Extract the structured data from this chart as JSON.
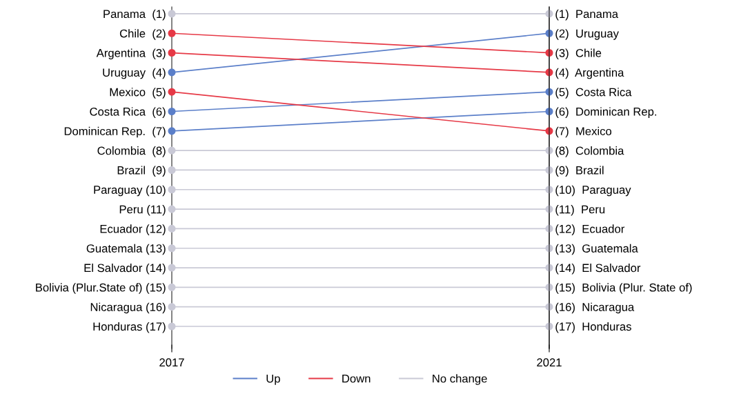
{
  "chart_data": {
    "type": "line",
    "x": [
      2017,
      2021
    ],
    "xlim": [
      2017,
      2021
    ],
    "xticks": [
      2017,
      2021
    ],
    "ylim": [
      18.13,
      0.65
    ],
    "yticks": [
      {
        "value": 1,
        "label": "Panama  (1)"
      },
      {
        "value": 2,
        "label": "Chile  (2)"
      },
      {
        "value": 3,
        "label": "Argentina  (3)"
      },
      {
        "value": 4,
        "label": "Uruguay  (4)"
      },
      {
        "value": 5,
        "label": "Mexico  (5)"
      },
      {
        "value": 6,
        "label": "Costa Rica  (6)"
      },
      {
        "value": 7,
        "label": "Dominican Rep.  (7)"
      },
      {
        "value": 8,
        "label": "Colombia  (8)"
      },
      {
        "value": 9,
        "label": "Brazil  (9)"
      },
      {
        "value": 10,
        "label": "Paraguay (10)"
      },
      {
        "value": 11,
        "label": "Peru (11)"
      },
      {
        "value": 12,
        "label": "Ecuador (12)"
      },
      {
        "value": 13,
        "label": "Guatemala (13)"
      },
      {
        "value": 14,
        "label": "El Salvador (14)"
      },
      {
        "value": 15,
        "label": "Bolivia (Plur.State of) (15)"
      },
      {
        "value": 16,
        "label": "Nicaragua (16)"
      },
      {
        "value": 17,
        "label": "Honduras (17)"
      }
    ],
    "y2lim": [
      18.13,
      0.65
    ],
    "y2ticks": [
      {
        "value": 1,
        "label": "(1)  Panama"
      },
      {
        "value": 2,
        "label": "(2)  Uruguay"
      },
      {
        "value": 3,
        "label": "(3)  Chile"
      },
      {
        "value": 4,
        "label": "(4)  Argentina"
      },
      {
        "value": 5,
        "label": "(5)  Costa Rica"
      },
      {
        "value": 6,
        "label": "(6)  Dominican Rep."
      },
      {
        "value": 7,
        "label": "(7)  Mexico"
      },
      {
        "value": 8,
        "label": "(8)  Colombia"
      },
      {
        "value": 9,
        "label": "(9)  Brazil"
      },
      {
        "value": 10,
        "label": "(10)  Paraguay"
      },
      {
        "value": 11,
        "label": "(11)  Peru"
      },
      {
        "value": 12,
        "label": "(12)  Ecuador"
      },
      {
        "value": 13,
        "label": "(13)  Guatemala"
      },
      {
        "value": 14,
        "label": "(14)  El Salvador"
      },
      {
        "value": 15,
        "label": "(15)  Bolivia (Plur. State of)"
      },
      {
        "value": 16,
        "label": "(16)  Nicaragua"
      },
      {
        "value": 17,
        "label": "(17)  Honduras"
      }
    ],
    "marker": "circle",
    "line_style": "solid",
    "grid": false,
    "legend": "bottom",
    "series": [
      {
        "name": "Up",
        "color": "#5b7fc9",
        "values": [
          4,
          2
        ]
      },
      {
        "color": "#5b7fc9",
        "values": [
          6,
          5
        ]
      },
      {
        "color": "#5b7fc9",
        "values": [
          7,
          6
        ]
      },
      {
        "name": "Down",
        "color": "#e63946",
        "values": [
          2,
          3
        ]
      },
      {
        "color": "#e63946",
        "values": [
          3,
          4
        ]
      },
      {
        "color": "#e63946",
        "values": [
          5,
          7
        ]
      },
      {
        "name": "No change",
        "color": "#c9c9d6",
        "values": [
          1,
          1
        ]
      },
      {
        "color": "#c9c9d6",
        "values": [
          8,
          8
        ]
      },
      {
        "color": "#c9c9d6",
        "values": [
          9,
          9
        ]
      },
      {
        "color": "#c9c9d6",
        "values": [
          10,
          10
        ]
      },
      {
        "color": "#c9c9d6",
        "values": [
          11,
          11
        ]
      },
      {
        "color": "#c9c9d6",
        "values": [
          12,
          12
        ]
      },
      {
        "color": "#c9c9d6",
        "values": [
          13,
          13
        ]
      },
      {
        "color": "#c9c9d6",
        "values": [
          14,
          14
        ]
      },
      {
        "color": "#c9c9d6",
        "values": [
          15,
          15
        ]
      },
      {
        "color": "#c9c9d6",
        "values": [
          16,
          16
        ]
      },
      {
        "color": "#c9c9d6",
        "values": [
          17,
          17
        ]
      }
    ]
  }
}
